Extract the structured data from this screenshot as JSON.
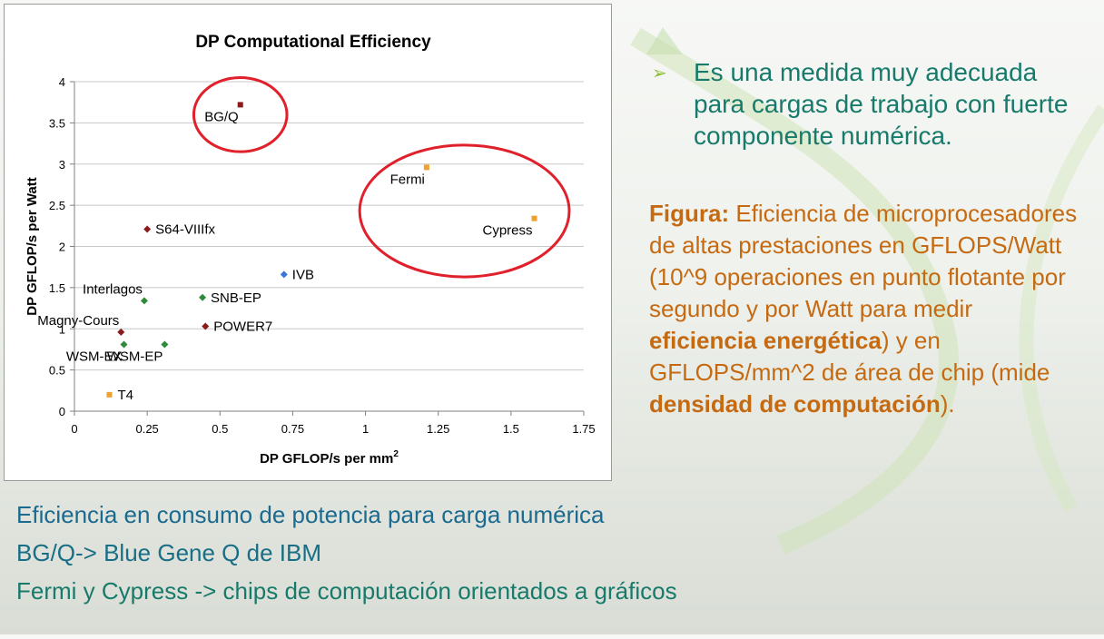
{
  "chart_data": {
    "type": "scatter",
    "title": "DP Computational Efficiency",
    "xlabel": "DP GFLOP/s per mm",
    "xlabel_superscript": "2",
    "ylabel": "DP GFLOP/s per Watt",
    "xlim": [
      0,
      1.75
    ],
    "ylim": [
      0,
      4
    ],
    "xticks": [
      "0",
      "0.25",
      "0.5",
      "0.75",
      "1",
      "1.25",
      "1.5",
      "1.75"
    ],
    "yticks": [
      "0",
      "0.5",
      "1",
      "1.5",
      "2",
      "2.5",
      "3",
      "3.5",
      "4"
    ],
    "grid": "horizontal",
    "points": [
      {
        "label": "BG/Q",
        "x": 0.57,
        "y": 3.72,
        "color": "#8b1a1a",
        "marker": "square",
        "label_pos": "below-left"
      },
      {
        "label": "Fermi",
        "x": 1.21,
        "y": 2.96,
        "color": "#f0a030",
        "marker": "square",
        "label_pos": "below-left"
      },
      {
        "label": "Cypress",
        "x": 1.58,
        "y": 2.34,
        "color": "#f0a030",
        "marker": "square",
        "label_pos": "below-left"
      },
      {
        "label": "S64-VIIIfx",
        "x": 0.25,
        "y": 2.21,
        "color": "#8b1a1a",
        "marker": "diamond",
        "label_pos": "right"
      },
      {
        "label": "IVB",
        "x": 0.72,
        "y": 1.66,
        "color": "#3a74d8",
        "marker": "diamond",
        "label_pos": "right"
      },
      {
        "label": "Interlagos",
        "x": 0.24,
        "y": 1.34,
        "color": "#2e8b3a",
        "marker": "diamond",
        "label_pos": "upper-left"
      },
      {
        "label": "SNB-EP",
        "x": 0.44,
        "y": 1.38,
        "color": "#2e8b3a",
        "marker": "diamond",
        "label_pos": "right"
      },
      {
        "label": "Magny-Cours",
        "x": 0.16,
        "y": 0.96,
        "color": "#8b1a1a",
        "marker": "diamond",
        "label_pos": "upper-left"
      },
      {
        "label": "POWER7",
        "x": 0.45,
        "y": 1.03,
        "color": "#8b1a1a",
        "marker": "diamond",
        "label_pos": "right"
      },
      {
        "label": "WSM-EX",
        "x": 0.17,
        "y": 0.81,
        "color": "#2e8b3a",
        "marker": "diamond",
        "label_pos": "below-left"
      },
      {
        "label": "WSM-EP",
        "x": 0.31,
        "y": 0.81,
        "color": "#2e8b3a",
        "marker": "diamond",
        "label_pos": "below-left"
      },
      {
        "label": "T4",
        "x": 0.12,
        "y": 0.2,
        "color": "#f0a030",
        "marker": "square",
        "label_pos": "right"
      }
    ],
    "highlight_ellipses": [
      {
        "around": "BG/Q",
        "cx": 0.57,
        "cy": 3.6,
        "rx": 0.16,
        "ry": 0.45
      },
      {
        "around": "Fermi, Cypress",
        "cx": 1.34,
        "cy": 2.43,
        "rx": 0.36,
        "ry": 0.8
      }
    ],
    "highlight_color": "#e0202a"
  },
  "bullet": {
    "marker": "➢",
    "text": "Es una medida muy adecuada para cargas de trabajo con fuerte componente numérica."
  },
  "caption": {
    "label": "Figura:",
    "text1": " Eficiencia de microprocesadores de altas prestaciones en GFLOPS/Watt (10^9 operaciones en punto flotante por segundo y por Watt para medir ",
    "bold1": "eficiencia energética",
    "text2": ") y en GFLOPS/mm^2 de área de chip (mide ",
    "bold2": "densidad de computación",
    "text3": ")."
  },
  "bottom": {
    "line1": "Eficiencia en consumo de potencia para carga numérica",
    "line2": "BG/Q-> Blue Gene Q de IBM",
    "line3": "Fermi y Cypress -> chips de computación orientados a gráficos"
  }
}
